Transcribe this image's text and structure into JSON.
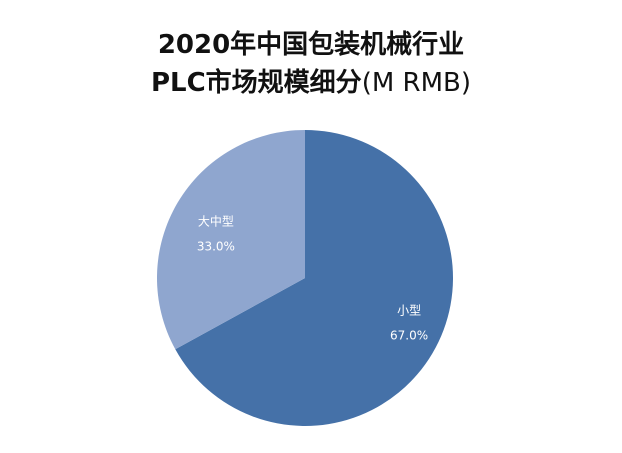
{
  "chart_data": {
    "type": "pie",
    "title_line1": "2020年中国包装机械行业",
    "title_line2_main": "PLC市场规模细分",
    "title_line2_unit": "(M RMB)",
    "slices": [
      {
        "label": "小型",
        "value": 67.0,
        "value_label": "67.0%",
        "color": "#4571a8"
      },
      {
        "label": "大中型",
        "value": 33.0,
        "value_label": "33.0%",
        "color": "#8fa6cf"
      }
    ],
    "start_angle_deg": 0,
    "direction": "clockwise",
    "legend": "none"
  }
}
